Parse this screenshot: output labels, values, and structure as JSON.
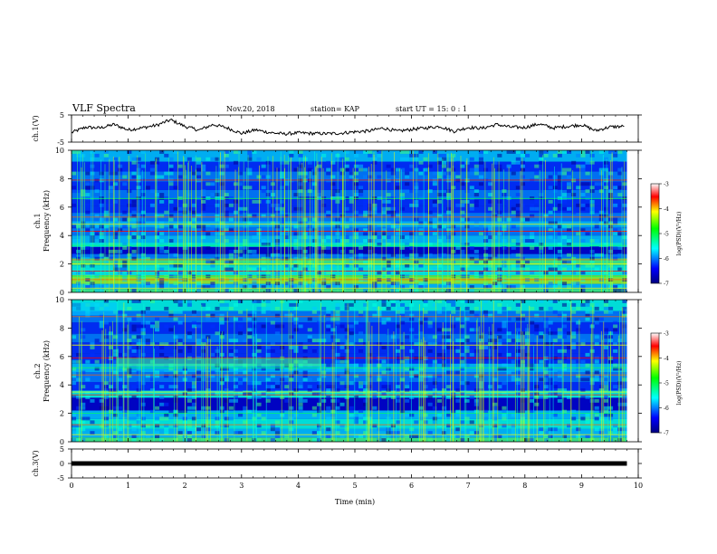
{
  "header": {
    "title": "VLF Spectra",
    "date": "Nov.20, 2018",
    "station": "station= KAP",
    "start": "start  UT =   15: 0  : 1"
  },
  "chart_data": [
    {
      "type": "line",
      "panel": "ch1-waveform",
      "ylabel": "ch.1(V)",
      "ylim": [
        -5,
        5
      ],
      "yticks": [
        "5",
        "-5"
      ],
      "xlim": [
        0,
        10
      ],
      "x": [
        0,
        0.25,
        0.5,
        0.75,
        1,
        1.25,
        1.5,
        1.75,
        2,
        2.25,
        2.5,
        2.75,
        3,
        3.25,
        3.5,
        3.75,
        4,
        4.25,
        4.5,
        4.75,
        5,
        5.25,
        5.5,
        5.75,
        6,
        6.25,
        6.5,
        6.75,
        7,
        7.25,
        7.5,
        7.75,
        8,
        8.25,
        8.5,
        8.75,
        9,
        9.25,
        9.5,
        9.75
      ],
      "values": [
        -1.5,
        0.5,
        0.2,
        1.5,
        -0.5,
        0.3,
        1.2,
        3.2,
        0.8,
        -0.6,
        1.5,
        0.2,
        -1.8,
        -0.5,
        -1.5,
        -2.0,
        -1.6,
        -1.8,
        -1.9,
        -1.7,
        -1.2,
        -0.9,
        0.2,
        -1.0,
        -0.3,
        0.2,
        0.8,
        -1.0,
        0.4,
        0.1,
        1.5,
        0.5,
        0.4,
        1.7,
        0.2,
        0.8,
        1.4,
        -0.8,
        0.6,
        0.8
      ]
    },
    {
      "type": "heatmap",
      "panel": "ch1-spectrogram",
      "ylabel": "ch.1",
      "ylabel2": "Frequency (kHz)",
      "ylim": [
        0,
        10
      ],
      "yticks": [
        "0",
        "2",
        "4",
        "6",
        "8",
        "10"
      ],
      "xlim": [
        0,
        9.8
      ],
      "colorbar": {
        "label": "log(PSD)(V²/Hz)",
        "range": [
          -7,
          -3
        ],
        "ticks": [
          "-3",
          "-4",
          "-5",
          "-6",
          "-7"
        ]
      }
    },
    {
      "type": "heatmap",
      "panel": "ch2-spectrogram",
      "ylabel": "ch.2",
      "ylabel2": "Frequency (kHz)",
      "ylim": [
        0,
        10
      ],
      "yticks": [
        "0",
        "2",
        "4",
        "6",
        "8",
        "10"
      ],
      "xlim": [
        0,
        9.8
      ],
      "colorbar": {
        "label": "log(PSD)(V²/Hz)",
        "range": [
          -7,
          -3
        ],
        "ticks": [
          "-3",
          "-4",
          "-5",
          "-6",
          "-7"
        ]
      }
    },
    {
      "type": "line",
      "panel": "ch3-waveform",
      "ylabel": "ch.3(V)",
      "ylim": [
        -5,
        5
      ],
      "yticks": [
        "5",
        "0",
        "-5"
      ],
      "xlim": [
        0,
        10
      ],
      "x": [
        0,
        9.8
      ],
      "values": [
        0,
        0
      ],
      "xlabel": "Time (min)",
      "xticks": [
        "0",
        "1",
        "2",
        "3",
        "4",
        "5",
        "6",
        "7",
        "8",
        "9",
        "10"
      ]
    }
  ]
}
